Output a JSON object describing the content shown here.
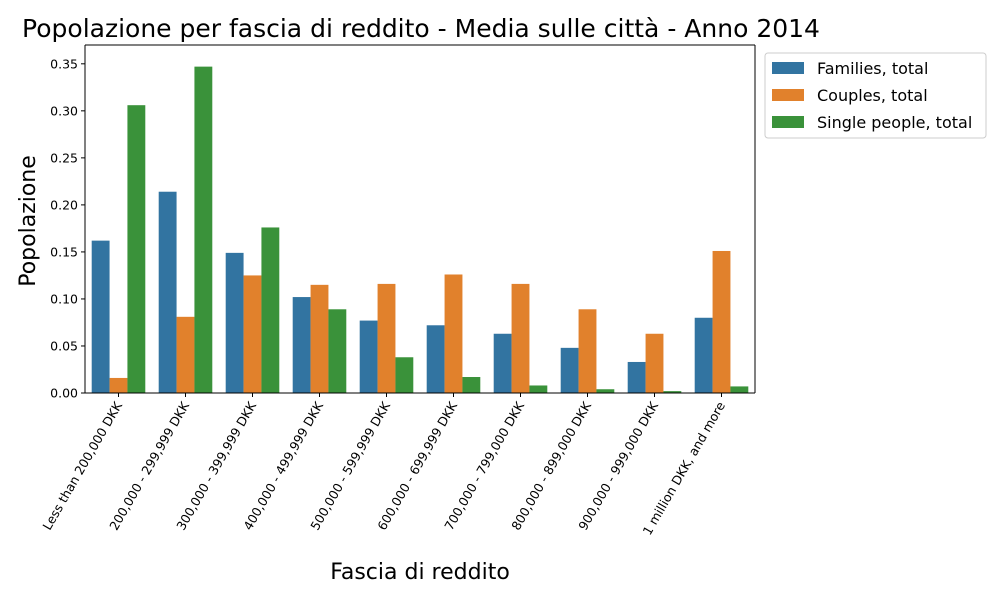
{
  "chart_data": {
    "type": "bar",
    "title": "Popolazione per fascia di reddito - Media sulle città - Anno 2014",
    "xlabel": "Fascia di reddito",
    "ylabel": "Popolazione",
    "ylim": [
      0,
      0.37
    ],
    "yticks": [
      "0.00",
      "0.05",
      "0.10",
      "0.15",
      "0.20",
      "0.25",
      "0.30",
      "0.35"
    ],
    "grid": false,
    "legend_position": "outside-top-right",
    "categories": [
      "Less than 200,000 DKK",
      "200,000 - 299,999 DKK",
      "300,000 - 399,999 DKK",
      "400,000 - 499,999 DKK",
      "500,000 - 599,999 DKK",
      "600,000 - 699,999 DKK",
      "700,000 - 799,000 DKK",
      "800,000 - 899,000 DKK",
      "900,000 - 999,000 DKK",
      "1 million DKK, and more"
    ],
    "series": [
      {
        "name": "Families, total",
        "color": "#3274a1",
        "values": [
          0.162,
          0.214,
          0.149,
          0.102,
          0.077,
          0.072,
          0.063,
          0.048,
          0.033,
          0.08
        ]
      },
      {
        "name": "Couples, total",
        "color": "#e1812c",
        "values": [
          0.016,
          0.081,
          0.125,
          0.115,
          0.116,
          0.126,
          0.116,
          0.089,
          0.063,
          0.151
        ]
      },
      {
        "name": "Single people, total",
        "color": "#3a923a",
        "values": [
          0.306,
          0.347,
          0.176,
          0.089,
          0.038,
          0.017,
          0.008,
          0.004,
          0.002,
          0.007
        ]
      }
    ]
  }
}
